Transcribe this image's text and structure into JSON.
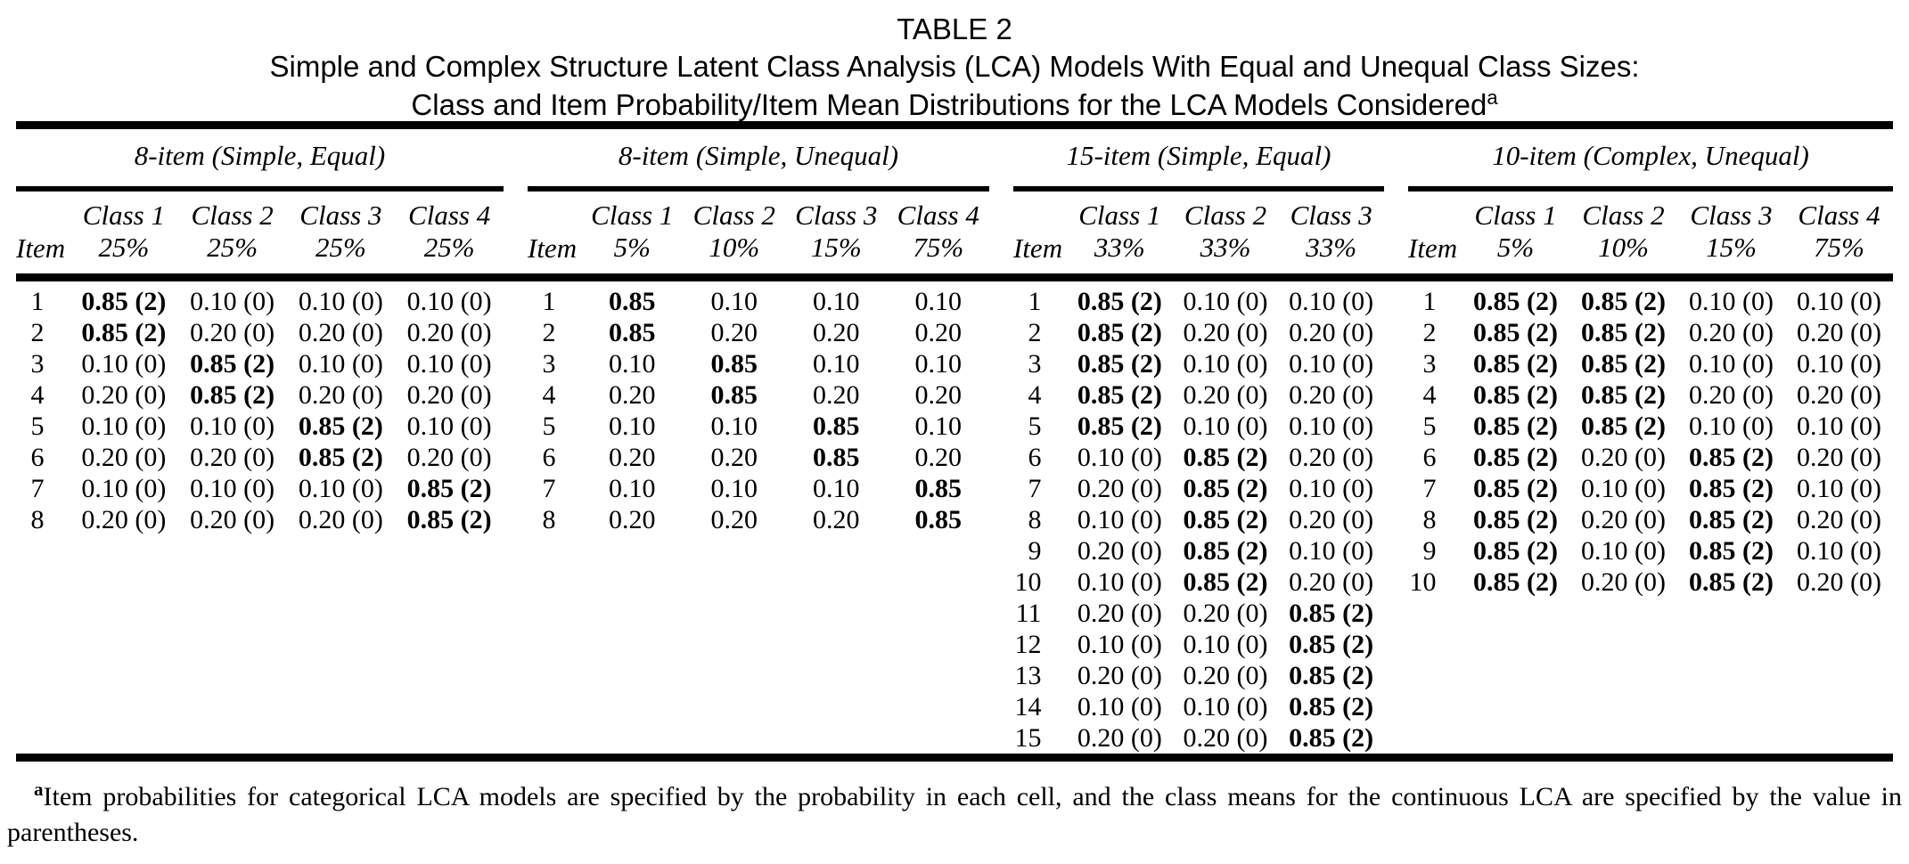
{
  "title": {
    "label": "TABLE 2",
    "subtitle_line1": "Simple and Complex Structure Latent Class Analysis (LCA) Models With Equal and Unequal Class Sizes:",
    "subtitle_line2": "Class and Item Probability/Item Mean Distributions for the LCA Models Considered",
    "subtitle_superscript": "a"
  },
  "table": {
    "item_header": "Item",
    "panels": [
      {
        "name": "8-item (Simple, Equal)",
        "columns": [
          {
            "class_label": "Class 1",
            "size": "25%"
          },
          {
            "class_label": "Class 2",
            "size": "25%"
          },
          {
            "class_label": "Class 3",
            "size": "25%"
          },
          {
            "class_label": "Class 4",
            "size": "25%"
          }
        ],
        "rows": [
          {
            "item": "1",
            "cells": [
              {
                "v": "0.85 (2)",
                "b": true
              },
              {
                "v": "0.10 (0)"
              },
              {
                "v": "0.10 (0)"
              },
              {
                "v": "0.10 (0)"
              }
            ]
          },
          {
            "item": "2",
            "cells": [
              {
                "v": "0.85 (2)",
                "b": true
              },
              {
                "v": "0.20 (0)"
              },
              {
                "v": "0.20 (0)"
              },
              {
                "v": "0.20 (0)"
              }
            ]
          },
          {
            "item": "3",
            "cells": [
              {
                "v": "0.10 (0)"
              },
              {
                "v": "0.85 (2)",
                "b": true
              },
              {
                "v": "0.10 (0)"
              },
              {
                "v": "0.10 (0)"
              }
            ]
          },
          {
            "item": "4",
            "cells": [
              {
                "v": "0.20 (0)"
              },
              {
                "v": "0.85 (2)",
                "b": true
              },
              {
                "v": "0.20 (0)"
              },
              {
                "v": "0.20 (0)"
              }
            ]
          },
          {
            "item": "5",
            "cells": [
              {
                "v": "0.10 (0)"
              },
              {
                "v": "0.10 (0)"
              },
              {
                "v": "0.85 (2)",
                "b": true
              },
              {
                "v": "0.10 (0)"
              }
            ]
          },
          {
            "item": "6",
            "cells": [
              {
                "v": "0.20 (0)"
              },
              {
                "v": "0.20 (0)"
              },
              {
                "v": "0.85 (2)",
                "b": true
              },
              {
                "v": "0.20 (0)"
              }
            ]
          },
          {
            "item": "7",
            "cells": [
              {
                "v": "0.10 (0)"
              },
              {
                "v": "0.10 (0)"
              },
              {
                "v": "0.10 (0)"
              },
              {
                "v": "0.85 (2)",
                "b": true
              }
            ]
          },
          {
            "item": "8",
            "cells": [
              {
                "v": "0.20 (0)"
              },
              {
                "v": "0.20 (0)"
              },
              {
                "v": "0.20 (0)"
              },
              {
                "v": "0.85 (2)",
                "b": true
              }
            ]
          }
        ]
      },
      {
        "name": "8-item (Simple, Unequal)",
        "columns": [
          {
            "class_label": "Class 1",
            "size": "5%"
          },
          {
            "class_label": "Class 2",
            "size": "10%"
          },
          {
            "class_label": "Class 3",
            "size": "15%"
          },
          {
            "class_label": "Class 4",
            "size": "75%"
          }
        ],
        "rows": [
          {
            "item": "1",
            "cells": [
              {
                "v": "0.85",
                "b": true
              },
              {
                "v": "0.10"
              },
              {
                "v": "0.10"
              },
              {
                "v": "0.10"
              }
            ]
          },
          {
            "item": "2",
            "cells": [
              {
                "v": "0.85",
                "b": true
              },
              {
                "v": "0.20"
              },
              {
                "v": "0.20"
              },
              {
                "v": "0.20"
              }
            ]
          },
          {
            "item": "3",
            "cells": [
              {
                "v": "0.10"
              },
              {
                "v": "0.85",
                "b": true
              },
              {
                "v": "0.10"
              },
              {
                "v": "0.10"
              }
            ]
          },
          {
            "item": "4",
            "cells": [
              {
                "v": "0.20"
              },
              {
                "v": "0.85",
                "b": true
              },
              {
                "v": "0.20"
              },
              {
                "v": "0.20"
              }
            ]
          },
          {
            "item": "5",
            "cells": [
              {
                "v": "0.10"
              },
              {
                "v": "0.10"
              },
              {
                "v": "0.85",
                "b": true
              },
              {
                "v": "0.10"
              }
            ]
          },
          {
            "item": "6",
            "cells": [
              {
                "v": "0.20"
              },
              {
                "v": "0.20"
              },
              {
                "v": "0.85",
                "b": true
              },
              {
                "v": "0.20"
              }
            ]
          },
          {
            "item": "7",
            "cells": [
              {
                "v": "0.10"
              },
              {
                "v": "0.10"
              },
              {
                "v": "0.10"
              },
              {
                "v": "0.85",
                "b": true
              }
            ]
          },
          {
            "item": "8",
            "cells": [
              {
                "v": "0.20"
              },
              {
                "v": "0.20"
              },
              {
                "v": "0.20"
              },
              {
                "v": "0.85",
                "b": true
              }
            ]
          }
        ]
      },
      {
        "name": "15-item (Simple, Equal)",
        "columns": [
          {
            "class_label": "Class 1",
            "size": "33%"
          },
          {
            "class_label": "Class 2",
            "size": "33%"
          },
          {
            "class_label": "Class 3",
            "size": "33%"
          }
        ],
        "rows": [
          {
            "item": "1",
            "cells": [
              {
                "v": "0.85 (2)",
                "b": true
              },
              {
                "v": "0.10 (0)"
              },
              {
                "v": "0.10 (0)"
              }
            ]
          },
          {
            "item": "2",
            "cells": [
              {
                "v": "0.85 (2)",
                "b": true
              },
              {
                "v": "0.20 (0)"
              },
              {
                "v": "0.20 (0)"
              }
            ]
          },
          {
            "item": "3",
            "cells": [
              {
                "v": "0.85 (2)",
                "b": true
              },
              {
                "v": "0.10 (0)"
              },
              {
                "v": "0.10 (0)"
              }
            ]
          },
          {
            "item": "4",
            "cells": [
              {
                "v": "0.85 (2)",
                "b": true
              },
              {
                "v": "0.20 (0)"
              },
              {
                "v": "0.20 (0)"
              }
            ]
          },
          {
            "item": "5",
            "cells": [
              {
                "v": "0.85 (2)",
                "b": true
              },
              {
                "v": "0.10 (0)"
              },
              {
                "v": "0.10 (0)"
              }
            ]
          },
          {
            "item": "6",
            "cells": [
              {
                "v": "0.10 (0)"
              },
              {
                "v": "0.85 (2)",
                "b": true
              },
              {
                "v": "0.20 (0)"
              }
            ]
          },
          {
            "item": "7",
            "cells": [
              {
                "v": "0.20 (0)"
              },
              {
                "v": "0.85 (2)",
                "b": true
              },
              {
                "v": "0.10 (0)"
              }
            ]
          },
          {
            "item": "8",
            "cells": [
              {
                "v": "0.10 (0)"
              },
              {
                "v": "0.85 (2)",
                "b": true
              },
              {
                "v": "0.20 (0)"
              }
            ]
          },
          {
            "item": "9",
            "cells": [
              {
                "v": "0.20 (0)"
              },
              {
                "v": "0.85 (2)",
                "b": true
              },
              {
                "v": "0.10 (0)"
              }
            ]
          },
          {
            "item": "10",
            "cells": [
              {
                "v": "0.10 (0)"
              },
              {
                "v": "0.85 (2)",
                "b": true
              },
              {
                "v": "0.20 (0)"
              }
            ]
          },
          {
            "item": "11",
            "cells": [
              {
                "v": "0.20 (0)"
              },
              {
                "v": "0.20 (0)"
              },
              {
                "v": "0.85 (2)",
                "b": true
              }
            ]
          },
          {
            "item": "12",
            "cells": [
              {
                "v": "0.10 (0)"
              },
              {
                "v": "0.10 (0)"
              },
              {
                "v": "0.85 (2)",
                "b": true
              }
            ]
          },
          {
            "item": "13",
            "cells": [
              {
                "v": "0.20 (0)"
              },
              {
                "v": "0.20 (0)"
              },
              {
                "v": "0.85 (2)",
                "b": true
              }
            ]
          },
          {
            "item": "14",
            "cells": [
              {
                "v": "0.10 (0)"
              },
              {
                "v": "0.10 (0)"
              },
              {
                "v": "0.85 (2)",
                "b": true
              }
            ]
          },
          {
            "item": "15",
            "cells": [
              {
                "v": "0.20 (0)"
              },
              {
                "v": "0.20 (0)"
              },
              {
                "v": "0.85 (2)",
                "b": true
              }
            ]
          }
        ]
      },
      {
        "name": "10-item (Complex, Unequal)",
        "columns": [
          {
            "class_label": "Class 1",
            "size": "5%"
          },
          {
            "class_label": "Class 2",
            "size": "10%"
          },
          {
            "class_label": "Class 3",
            "size": "15%"
          },
          {
            "class_label": "Class 4",
            "size": "75%"
          }
        ],
        "rows": [
          {
            "item": "1",
            "cells": [
              {
                "v": "0.85 (2)",
                "b": true
              },
              {
                "v": "0.85 (2)",
                "b": true
              },
              {
                "v": "0.10 (0)"
              },
              {
                "v": "0.10 (0)"
              }
            ]
          },
          {
            "item": "2",
            "cells": [
              {
                "v": "0.85 (2)",
                "b": true
              },
              {
                "v": "0.85 (2)",
                "b": true
              },
              {
                "v": "0.20 (0)"
              },
              {
                "v": "0.20 (0)"
              }
            ]
          },
          {
            "item": "3",
            "cells": [
              {
                "v": "0.85 (2)",
                "b": true
              },
              {
                "v": "0.85 (2)",
                "b": true
              },
              {
                "v": "0.10 (0)"
              },
              {
                "v": "0.10 (0)"
              }
            ]
          },
          {
            "item": "4",
            "cells": [
              {
                "v": "0.85 (2)",
                "b": true
              },
              {
                "v": "0.85 (2)",
                "b": true
              },
              {
                "v": "0.20 (0)"
              },
              {
                "v": "0.20 (0)"
              }
            ]
          },
          {
            "item": "5",
            "cells": [
              {
                "v": "0.85 (2)",
                "b": true
              },
              {
                "v": "0.85 (2)",
                "b": true
              },
              {
                "v": "0.10 (0)"
              },
              {
                "v": "0.10 (0)"
              }
            ]
          },
          {
            "item": "6",
            "cells": [
              {
                "v": "0.85 (2)",
                "b": true
              },
              {
                "v": "0.20 (0)"
              },
              {
                "v": "0.85 (2)",
                "b": true
              },
              {
                "v": "0.20 (0)"
              }
            ]
          },
          {
            "item": "7",
            "cells": [
              {
                "v": "0.85 (2)",
                "b": true
              },
              {
                "v": "0.10 (0)"
              },
              {
                "v": "0.85 (2)",
                "b": true
              },
              {
                "v": "0.10 (0)"
              }
            ]
          },
          {
            "item": "8",
            "cells": [
              {
                "v": "0.85 (2)",
                "b": true
              },
              {
                "v": "0.20 (0)"
              },
              {
                "v": "0.85 (2)",
                "b": true
              },
              {
                "v": "0.20 (0)"
              }
            ]
          },
          {
            "item": "9",
            "cells": [
              {
                "v": "0.85 (2)",
                "b": true
              },
              {
                "v": "0.10 (0)"
              },
              {
                "v": "0.85 (2)",
                "b": true
              },
              {
                "v": "0.10 (0)"
              }
            ]
          },
          {
            "item": "10",
            "cells": [
              {
                "v": "0.85 (2)",
                "b": true
              },
              {
                "v": "0.20 (0)"
              },
              {
                "v": "0.85 (2)",
                "b": true
              },
              {
                "v": "0.20 (0)"
              }
            ]
          }
        ]
      }
    ]
  },
  "footnote": {
    "marker": "a",
    "text": "Item probabilities for categorical LCA models are specified by the probability in each cell, and the class means for the continuous LCA are specified by the value in parentheses."
  }
}
